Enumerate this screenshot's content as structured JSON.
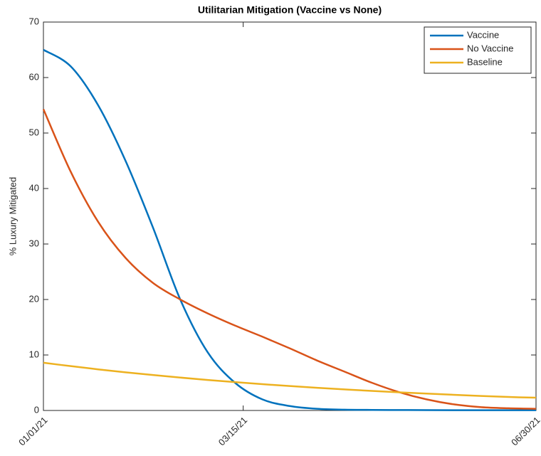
{
  "chart_data": {
    "type": "line",
    "title": "Utilitarian Mitigation (Vaccine vs None)",
    "y_label": "% Luxury Mitigated",
    "x": [
      "01/01/21",
      "01/11/21",
      "01/21/21",
      "01/31/21",
      "02/10/21",
      "02/20/21",
      "03/02/21",
      "03/12/21",
      "03/22/21",
      "04/01/21",
      "04/11/21",
      "04/21/21",
      "05/01/21",
      "05/11/21",
      "05/21/21",
      "05/31/21",
      "06/10/21",
      "06/20/21",
      "06/30/21"
    ],
    "series": [
      {
        "name": "Vaccine",
        "color": "#0072bd",
        "values": [
          65,
          62,
          55,
          45,
          33,
          20,
          10.5,
          5,
          2,
          0.8,
          0.3,
          0.15,
          0.1,
          0.08,
          0.06,
          0.05,
          0.05,
          0.05,
          0.05
        ]
      },
      {
        "name": "No Vaccine",
        "color": "#d95319",
        "values": [
          54.3,
          43,
          34,
          27.5,
          23,
          20,
          17.5,
          15.3,
          13.3,
          11.2,
          9,
          7,
          5,
          3.3,
          2,
          1.1,
          0.6,
          0.4,
          0.3
        ]
      },
      {
        "name": "Baseline",
        "color": "#edb120",
        "values": [
          8.6,
          7.99,
          7.41,
          6.88,
          6.39,
          5.93,
          5.5,
          5.11,
          4.74,
          4.4,
          4.09,
          3.8,
          3.52,
          3.27,
          3.04,
          2.82,
          2.62,
          2.43,
          2.3
        ]
      }
    ],
    "xlim": [
      "01/01/21",
      "06/30/21"
    ],
    "xticks": [
      "01/01/21",
      "03/15/21",
      "06/30/21"
    ],
    "ylim": [
      0,
      70
    ],
    "yticks": [
      0,
      10,
      20,
      30,
      40,
      50,
      60,
      70
    ],
    "legend": "upper right"
  }
}
